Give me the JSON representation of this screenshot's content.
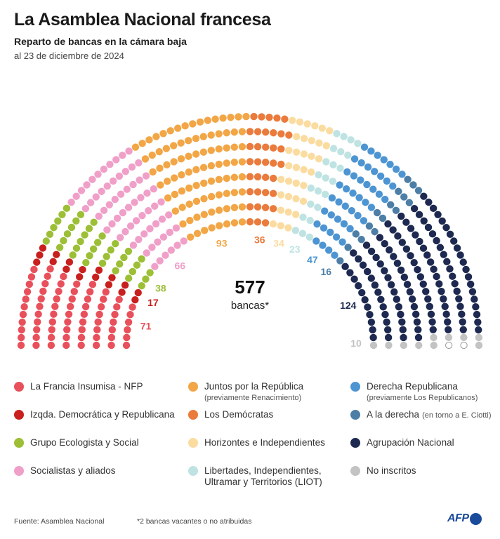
{
  "header": {
    "title": "La Asamblea Nacional francesa",
    "subtitle": "Reparto de bancas en la cámara baja",
    "date": "al 23 de diciembre de 2024"
  },
  "center": {
    "total": "577",
    "label": "bancas*"
  },
  "chart_data": {
    "type": "parliament",
    "total_seats": 577,
    "series": [
      {
        "name": "La Francia Insumisa - NFP",
        "value": 71,
        "color": "#e8505b"
      },
      {
        "name": "Izqda. Democrática y Republicana",
        "value": 17,
        "color": "#c8201e"
      },
      {
        "name": "Grupo Ecologista y Social",
        "value": 38,
        "color": "#9cbf36"
      },
      {
        "name": "Socialistas y aliados",
        "value": 66,
        "color": "#f0a0c8"
      },
      {
        "name": "Juntos por la República",
        "value": 93,
        "color": "#f2a646"
      },
      {
        "name": "Los Demócratas",
        "value": 36,
        "color": "#ea7b3c"
      },
      {
        "name": "Horizontes e Independientes",
        "value": 34,
        "color": "#fbdca0"
      },
      {
        "name": "Libertades, Independientes, Ultramar y Territorios (LIOT)",
        "value": 23,
        "color": "#bfe3e3"
      },
      {
        "name": "Derecha Republicana",
        "value": 47,
        "color": "#4d95d2"
      },
      {
        "name": "A la derecha",
        "value": 16,
        "color": "#4c7ea6"
      },
      {
        "name": "Agrupación Nacional",
        "value": 124,
        "color": "#1d2950"
      },
      {
        "name": "No inscritos",
        "value": 10,
        "color": "#c3c3c3"
      },
      {
        "name": "vacant",
        "value": 2,
        "color": "#ffffff"
      }
    ]
  },
  "seat_labels": [
    {
      "text": "71",
      "color": "#e8505b"
    },
    {
      "text": "17",
      "color": "#c8201e"
    },
    {
      "text": "38",
      "color": "#9cbf36"
    },
    {
      "text": "66",
      "color": "#f0a0c8"
    },
    {
      "text": "93",
      "color": "#f2a646"
    },
    {
      "text": "36",
      "color": "#ea7b3c"
    },
    {
      "text": "34",
      "color": "#fbdca0"
    },
    {
      "text": "23",
      "color": "#bfe3e3"
    },
    {
      "text": "47",
      "color": "#4d95d2"
    },
    {
      "text": "16",
      "color": "#4c7ea6"
    },
    {
      "text": "124",
      "color": "#1d2950"
    },
    {
      "text": "10",
      "color": "#c3c3c3"
    }
  ],
  "legend": [
    {
      "label": "La Francia Insumisa - NFP",
      "sub": "",
      "aside": "",
      "color": "#e8505b"
    },
    {
      "label": "Izqda. Democrática y Republicana",
      "sub": "",
      "aside": "",
      "color": "#c8201e"
    },
    {
      "label": "Grupo Ecologista y Social",
      "sub": "",
      "aside": "",
      "color": "#9cbf36"
    },
    {
      "label": "Socialistas y aliados",
      "sub": "",
      "aside": "",
      "color": "#f0a0c8"
    },
    {
      "label": "Juntos por la República",
      "sub": "(previamente Renacimiento)",
      "aside": "",
      "color": "#f2a646"
    },
    {
      "label": "Los Demócratas",
      "sub": "",
      "aside": "",
      "color": "#ea7b3c"
    },
    {
      "label": "Horizontes e Independientes",
      "sub": "",
      "aside": "",
      "color": "#fbdca0"
    },
    {
      "label": "Libertades, Independientes,\nUltramar y Territorios (LIOT)",
      "sub": "",
      "aside": "",
      "color": "#bfe3e3"
    },
    {
      "label": "Derecha Republicana",
      "sub": "(previamente Los Republicanos)",
      "aside": "",
      "color": "#4d95d2"
    },
    {
      "label": "A la derecha",
      "sub": "",
      "aside": "(en torno a E. Ciotti)",
      "color": "#4c7ea6"
    },
    {
      "label": "Agrupación Nacional",
      "sub": "",
      "aside": "",
      "color": "#1d2950"
    },
    {
      "label": "No inscritos",
      "sub": "",
      "aside": "",
      "color": "#c3c3c3"
    }
  ],
  "footer": {
    "source": "Fuente: Asamblea Nacional",
    "note": "*2 bancas vacantes o no atribuidas",
    "logo": "AFP"
  }
}
